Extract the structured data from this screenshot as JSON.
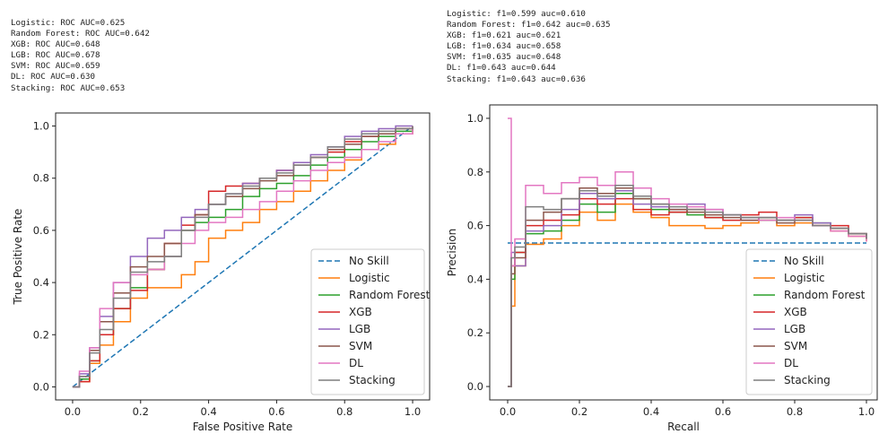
{
  "roc_summary": [
    "Logistic: ROC AUC=0.625",
    "Random Forest: ROC AUC=0.642",
    "XGB: ROC AUC=0.648",
    "LGB: ROC AUC=0.678",
    "SVM: ROC AUC=0.659",
    "DL: ROC AUC=0.630",
    "Stacking: ROC AUC=0.653"
  ],
  "pr_summary": [
    "Logistic: f1=0.599 auc=0.610",
    "Random Forest: f1=0.642 auc=0.635",
    "XGB: f1=0.621 auc=0.621",
    "LGB: f1=0.634 auc=0.658",
    "SVM: f1=0.635 auc=0.648",
    "DL: f1=0.643 auc=0.644",
    "Stacking: f1=0.643 auc=0.636"
  ],
  "colors": {
    "No Skill": "#1f77b4",
    "Logistic": "#ff7f0e",
    "Random Forest": "#2ca02c",
    "XGB": "#d62728",
    "LGB": "#9467bd",
    "SVM": "#8c564b",
    "DL": "#e377c2",
    "Stacking": "#7f7f7f"
  },
  "chart_data": [
    {
      "type": "line",
      "xlabel": "False Positive Rate",
      "ylabel": "True Positive Rate",
      "xlim": [
        -0.05,
        1.05
      ],
      "ylim": [
        -0.05,
        1.05
      ],
      "xticks": [
        "0.0",
        "0.2",
        "0.4",
        "0.6",
        "0.8",
        "1.0"
      ],
      "yticks": [
        "0.0",
        "0.2",
        "0.4",
        "0.6",
        "0.8",
        "1.0"
      ],
      "legend_position": "lower-right",
      "series": [
        {
          "name": "No Skill",
          "style": "dashed",
          "x": [
            0,
            1
          ],
          "y": [
            0,
            1
          ]
        },
        {
          "name": "Logistic",
          "x": [
            0,
            0.02,
            0.05,
            0.08,
            0.12,
            0.17,
            0.22,
            0.27,
            0.32,
            0.36,
            0.4,
            0.45,
            0.5,
            0.55,
            0.6,
            0.65,
            0.7,
            0.75,
            0.8,
            0.85,
            0.9,
            0.95,
            1.0
          ],
          "y": [
            0,
            0.02,
            0.09,
            0.16,
            0.25,
            0.34,
            0.38,
            0.38,
            0.43,
            0.48,
            0.57,
            0.6,
            0.63,
            0.68,
            0.71,
            0.75,
            0.79,
            0.83,
            0.87,
            0.91,
            0.93,
            0.97,
            1.0
          ]
        },
        {
          "name": "Random Forest",
          "x": [
            0,
            0.02,
            0.05,
            0.08,
            0.12,
            0.17,
            0.22,
            0.27,
            0.32,
            0.36,
            0.4,
            0.45,
            0.5,
            0.55,
            0.6,
            0.65,
            0.7,
            0.75,
            0.8,
            0.85,
            0.9,
            0.95,
            1.0
          ],
          "y": [
            0,
            0.03,
            0.1,
            0.2,
            0.3,
            0.38,
            0.45,
            0.5,
            0.6,
            0.63,
            0.65,
            0.68,
            0.73,
            0.76,
            0.78,
            0.81,
            0.85,
            0.88,
            0.91,
            0.94,
            0.96,
            0.98,
            1.0
          ]
        },
        {
          "name": "XGB",
          "x": [
            0,
            0.02,
            0.05,
            0.08,
            0.12,
            0.17,
            0.22,
            0.27,
            0.32,
            0.36,
            0.4,
            0.45,
            0.5,
            0.55,
            0.6,
            0.65,
            0.7,
            0.75,
            0.8,
            0.85,
            0.9,
            0.95,
            1.0
          ],
          "y": [
            0,
            0.02,
            0.1,
            0.2,
            0.3,
            0.37,
            0.45,
            0.55,
            0.62,
            0.66,
            0.75,
            0.77,
            0.78,
            0.8,
            0.83,
            0.86,
            0.88,
            0.9,
            0.94,
            0.96,
            0.97,
            0.99,
            1.0
          ]
        },
        {
          "name": "LGB",
          "x": [
            0,
            0.02,
            0.05,
            0.08,
            0.12,
            0.17,
            0.22,
            0.27,
            0.32,
            0.36,
            0.4,
            0.45,
            0.5,
            0.55,
            0.6,
            0.65,
            0.7,
            0.75,
            0.8,
            0.85,
            0.9,
            0.95,
            1.0
          ],
          "y": [
            0,
            0.05,
            0.15,
            0.27,
            0.4,
            0.5,
            0.57,
            0.6,
            0.65,
            0.68,
            0.7,
            0.74,
            0.78,
            0.8,
            0.83,
            0.86,
            0.89,
            0.92,
            0.96,
            0.98,
            0.99,
            1.0,
            1.0
          ]
        },
        {
          "name": "SVM",
          "x": [
            0,
            0.02,
            0.05,
            0.08,
            0.12,
            0.17,
            0.22,
            0.27,
            0.32,
            0.36,
            0.4,
            0.45,
            0.5,
            0.55,
            0.6,
            0.65,
            0.7,
            0.75,
            0.8,
            0.85,
            0.9,
            0.95,
            1.0
          ],
          "y": [
            0,
            0.04,
            0.14,
            0.25,
            0.36,
            0.46,
            0.5,
            0.55,
            0.6,
            0.66,
            0.7,
            0.73,
            0.76,
            0.79,
            0.81,
            0.85,
            0.88,
            0.91,
            0.93,
            0.96,
            0.97,
            0.99,
            1.0
          ]
        },
        {
          "name": "DL",
          "x": [
            0,
            0.02,
            0.05,
            0.08,
            0.12,
            0.17,
            0.22,
            0.27,
            0.32,
            0.36,
            0.4,
            0.45,
            0.5,
            0.55,
            0.6,
            0.65,
            0.7,
            0.75,
            0.8,
            0.85,
            0.9,
            0.95,
            1.0
          ],
          "y": [
            0,
            0.06,
            0.15,
            0.3,
            0.4,
            0.43,
            0.45,
            0.5,
            0.55,
            0.6,
            0.63,
            0.65,
            0.68,
            0.71,
            0.75,
            0.79,
            0.83,
            0.86,
            0.88,
            0.91,
            0.94,
            0.97,
            1.0
          ]
        },
        {
          "name": "Stacking",
          "x": [
            0,
            0.02,
            0.05,
            0.08,
            0.12,
            0.17,
            0.22,
            0.27,
            0.32,
            0.36,
            0.4,
            0.45,
            0.5,
            0.55,
            0.6,
            0.65,
            0.7,
            0.75,
            0.8,
            0.85,
            0.9,
            0.95,
            1.0
          ],
          "y": [
            0,
            0.04,
            0.13,
            0.22,
            0.34,
            0.44,
            0.48,
            0.5,
            0.6,
            0.65,
            0.7,
            0.74,
            0.77,
            0.8,
            0.82,
            0.85,
            0.88,
            0.92,
            0.95,
            0.97,
            0.98,
            0.99,
            1.0
          ]
        }
      ]
    },
    {
      "type": "line",
      "xlabel": "Recall",
      "ylabel": "Precision",
      "xlim": [
        -0.05,
        1.03
      ],
      "ylim": [
        -0.05,
        1.05
      ],
      "xticks": [
        "0.0",
        "0.2",
        "0.4",
        "0.6",
        "0.8",
        "1.0"
      ],
      "yticks": [
        "0.0",
        "0.2",
        "0.4",
        "0.6",
        "0.8",
        "1.0"
      ],
      "legend_position": "lower-right",
      "series": [
        {
          "name": "No Skill",
          "style": "dashed",
          "x": [
            0,
            1
          ],
          "y": [
            0.535,
            0.535
          ]
        },
        {
          "name": "Logistic",
          "x": [
            0,
            0.01,
            0.02,
            0.05,
            0.1,
            0.15,
            0.2,
            0.25,
            0.3,
            0.35,
            0.4,
            0.45,
            0.5,
            0.55,
            0.6,
            0.65,
            0.7,
            0.75,
            0.8,
            0.85,
            0.9,
            0.95,
            1.0
          ],
          "y": [
            0,
            0.3,
            0.45,
            0.53,
            0.55,
            0.6,
            0.65,
            0.62,
            0.68,
            0.65,
            0.63,
            0.6,
            0.6,
            0.59,
            0.6,
            0.61,
            0.62,
            0.6,
            0.61,
            0.6,
            0.58,
            0.56,
            0.54
          ]
        },
        {
          "name": "Random Forest",
          "x": [
            0,
            0.01,
            0.02,
            0.05,
            0.1,
            0.15,
            0.2,
            0.25,
            0.3,
            0.35,
            0.4,
            0.45,
            0.5,
            0.55,
            0.6,
            0.65,
            0.7,
            0.75,
            0.8,
            0.85,
            0.9,
            0.95,
            1.0
          ],
          "y": [
            0,
            0.4,
            0.5,
            0.57,
            0.58,
            0.62,
            0.68,
            0.65,
            0.72,
            0.7,
            0.66,
            0.65,
            0.64,
            0.63,
            0.64,
            0.63,
            0.62,
            0.62,
            0.63,
            0.61,
            0.59,
            0.57,
            0.55
          ]
        },
        {
          "name": "XGB",
          "x": [
            0,
            0.01,
            0.02,
            0.05,
            0.1,
            0.15,
            0.2,
            0.25,
            0.3,
            0.35,
            0.4,
            0.45,
            0.5,
            0.55,
            0.6,
            0.65,
            0.7,
            0.75,
            0.8,
            0.85,
            0.9,
            0.95,
            1.0
          ],
          "y": [
            0,
            0.45,
            0.5,
            0.6,
            0.62,
            0.64,
            0.7,
            0.68,
            0.7,
            0.66,
            0.64,
            0.65,
            0.66,
            0.63,
            0.62,
            0.64,
            0.65,
            0.62,
            0.63,
            0.6,
            0.6,
            0.57,
            0.55
          ]
        },
        {
          "name": "LGB",
          "x": [
            0,
            0.01,
            0.02,
            0.05,
            0.1,
            0.15,
            0.2,
            0.25,
            0.3,
            0.35,
            0.4,
            0.45,
            0.5,
            0.55,
            0.6,
            0.65,
            0.7,
            0.75,
            0.8,
            0.85,
            0.9,
            0.95,
            1.0
          ],
          "y": [
            0,
            0.5,
            0.45,
            0.58,
            0.6,
            0.66,
            0.72,
            0.7,
            0.73,
            0.68,
            0.67,
            0.66,
            0.68,
            0.66,
            0.64,
            0.62,
            0.63,
            0.62,
            0.64,
            0.61,
            0.59,
            0.57,
            0.55
          ]
        },
        {
          "name": "SVM",
          "x": [
            0,
            0.01,
            0.02,
            0.05,
            0.1,
            0.15,
            0.2,
            0.25,
            0.3,
            0.35,
            0.4,
            0.45,
            0.5,
            0.55,
            0.6,
            0.65,
            0.7,
            0.75,
            0.8,
            0.85,
            0.9,
            0.95,
            1.0
          ],
          "y": [
            0,
            0.42,
            0.48,
            0.62,
            0.65,
            0.7,
            0.74,
            0.72,
            0.74,
            0.7,
            0.68,
            0.66,
            0.65,
            0.64,
            0.63,
            0.62,
            0.63,
            0.61,
            0.62,
            0.6,
            0.59,
            0.57,
            0.55
          ]
        },
        {
          "name": "DL",
          "x": [
            0,
            0.01,
            0.02,
            0.05,
            0.1,
            0.15,
            0.2,
            0.25,
            0.3,
            0.35,
            0.4,
            0.45,
            0.5,
            0.55,
            0.6,
            0.65,
            0.7,
            0.75,
            0.8,
            0.85,
            0.9,
            0.95,
            1.0
          ],
          "y": [
            1.0,
            0.45,
            0.55,
            0.75,
            0.72,
            0.76,
            0.78,
            0.75,
            0.8,
            0.74,
            0.7,
            0.68,
            0.67,
            0.66,
            0.64,
            0.63,
            0.62,
            0.63,
            0.62,
            0.6,
            0.58,
            0.56,
            0.54
          ]
        },
        {
          "name": "Stacking",
          "x": [
            0,
            0.01,
            0.02,
            0.05,
            0.1,
            0.15,
            0.2,
            0.25,
            0.3,
            0.35,
            0.4,
            0.45,
            0.5,
            0.55,
            0.6,
            0.65,
            0.7,
            0.75,
            0.8,
            0.85,
            0.9,
            0.95,
            1.0
          ],
          "y": [
            0,
            0.48,
            0.52,
            0.67,
            0.66,
            0.7,
            0.73,
            0.71,
            0.75,
            0.71,
            0.68,
            0.67,
            0.66,
            0.65,
            0.64,
            0.63,
            0.63,
            0.62,
            0.62,
            0.6,
            0.59,
            0.57,
            0.55
          ]
        }
      ]
    }
  ]
}
